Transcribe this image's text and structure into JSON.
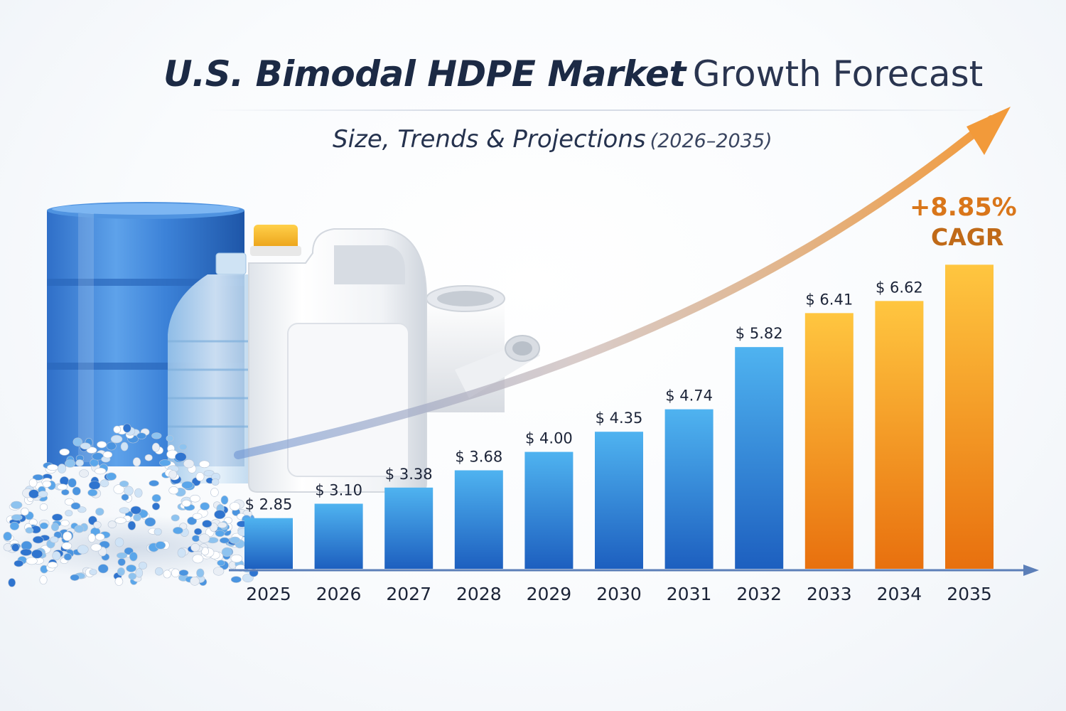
{
  "title": {
    "strong": "U.S. Bimodal HDPE Market",
    "light": "Growth Forecast"
  },
  "subtitle": {
    "main": "Size, Trends & Projections",
    "years": "(2026–2035)"
  },
  "cagr": {
    "value": "+8.85%",
    "label": "CAGR"
  },
  "colors": {
    "blue_bar_top": "#4fb3f0",
    "blue_bar_bottom": "#1d5fbf",
    "orange_bar_top": "#ffc640",
    "orange_bar_bottom": "#e8700e",
    "axis": "#5c7fb8",
    "arrow": "#f29a3a"
  },
  "illustration": {
    "items": [
      "blue-drum",
      "clear-bottle",
      "white-jerrycan",
      "white-pipe-fitting",
      "hdpe-pellet-pile"
    ]
  },
  "chart_data": {
    "type": "bar",
    "categories": [
      "2025",
      "2026",
      "2027",
      "2028",
      "2029",
      "2030",
      "2031",
      "2032",
      "2033",
      "2034",
      "2035"
    ],
    "values": [
      2.85,
      3.1,
      3.38,
      3.68,
      4.0,
      4.35,
      4.74,
      5.82,
      6.41,
      6.62,
      7.25
    ],
    "data_labels": [
      "$ 2.85",
      "$ 3.10",
      "$ 3.38",
      "$ 3.68",
      "$ 4.00",
      "$ 4.35",
      "$ 4.74",
      "$ 5.82",
      "$ 6.41",
      "$ 6.62",
      ""
    ],
    "bar_colors": [
      "blue",
      "blue",
      "blue",
      "blue",
      "blue",
      "blue",
      "blue",
      "blue",
      "orange",
      "orange",
      "orange"
    ],
    "ylim": [
      1.97,
      7.4
    ],
    "grid": false,
    "legend": "none",
    "annotations": [
      "+8.85% CAGR"
    ],
    "trend_arrow": true
  }
}
